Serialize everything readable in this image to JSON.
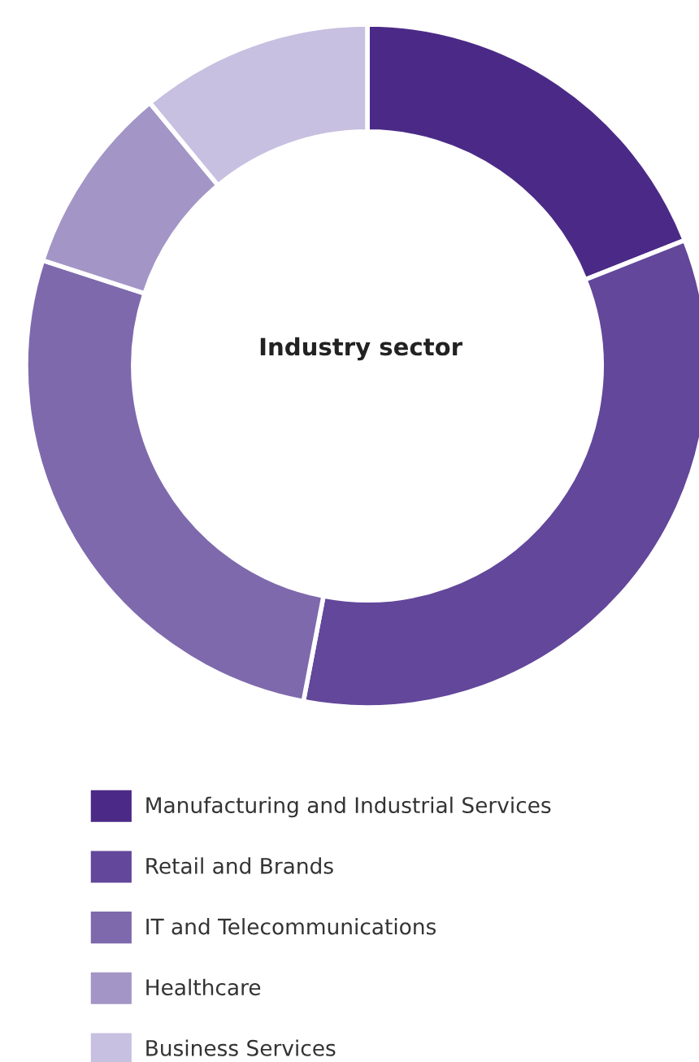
{
  "chart_data": {
    "type": "donut",
    "title": "Industry sector",
    "categories": [
      "Manufacturing and Industrial Services",
      "Retail and Brands",
      "IT and Telecommunications",
      "Healthcare",
      "Business Services"
    ],
    "values": [
      19,
      34,
      27,
      9,
      11
    ],
    "colors": [
      "#4b2a87",
      "#62479a",
      "#7e69ad",
      "#a395c6",
      "#c8c0e0"
    ],
    "legend": "bottom"
  }
}
